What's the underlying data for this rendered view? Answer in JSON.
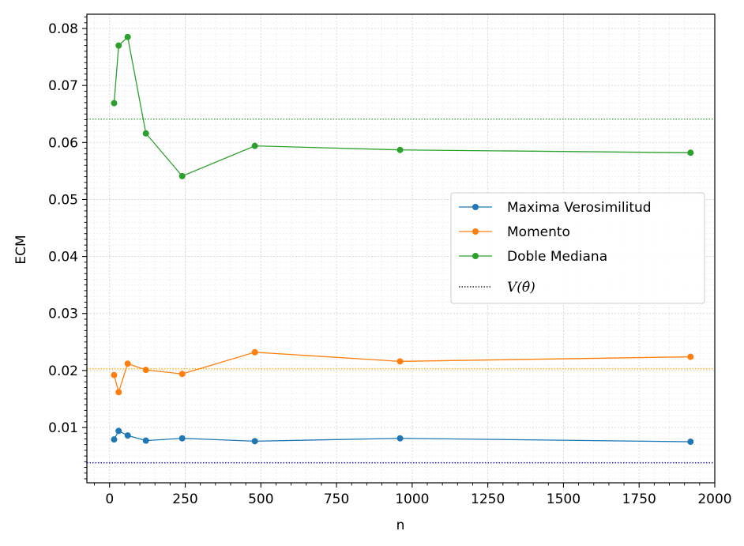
{
  "chart_data": {
    "type": "line",
    "xlabel": "n",
    "ylabel": "ECM",
    "xlim": [
      -75,
      2000
    ],
    "ylim": [
      0.0003,
      0.0825
    ],
    "xticks": [
      0,
      250,
      500,
      750,
      1000,
      1250,
      1500,
      1750,
      2000
    ],
    "xtick_labels": [
      "0",
      "250",
      "500",
      "750",
      "1000",
      "1250",
      "1500",
      "1750",
      "2000"
    ],
    "yticks": [
      0.01,
      0.02,
      0.03,
      0.04,
      0.05,
      0.06,
      0.07,
      0.08
    ],
    "ytick_labels": [
      "0.01",
      "0.02",
      "0.03",
      "0.04",
      "0.05",
      "0.06",
      "0.07",
      "0.08"
    ],
    "grid": true,
    "legend_position": "center-right",
    "x": [
      15,
      30,
      60,
      120,
      240,
      480,
      960,
      1920
    ],
    "series": [
      {
        "name": "Maxima Verosimilitud",
        "color": "#1f77b4",
        "values": [
          0.0079,
          0.0094,
          0.0086,
          0.0077,
          0.0081,
          0.0076,
          0.0081,
          0.0075
        ]
      },
      {
        "name": "Momento",
        "color": "#ff7f0e",
        "values": [
          0.0192,
          0.0162,
          0.0212,
          0.0201,
          0.0194,
          0.0232,
          0.0216,
          0.0224
        ]
      },
      {
        "name": "Doble Mediana",
        "color": "#2ca02c",
        "values": [
          0.0669,
          0.077,
          0.0785,
          0.0616,
          0.0541,
          0.0594,
          0.0587,
          0.0582
        ]
      }
    ],
    "reference_lines": [
      {
        "color": "#0000cd",
        "value": 0.0038
      },
      {
        "color": "#ffa500",
        "value": 0.0203
      },
      {
        "color": "#2ca02c",
        "value": 0.0641
      }
    ],
    "reference_legend": {
      "prefix": "V(",
      "symbol": "θ̂",
      "suffix": ")"
    }
  }
}
